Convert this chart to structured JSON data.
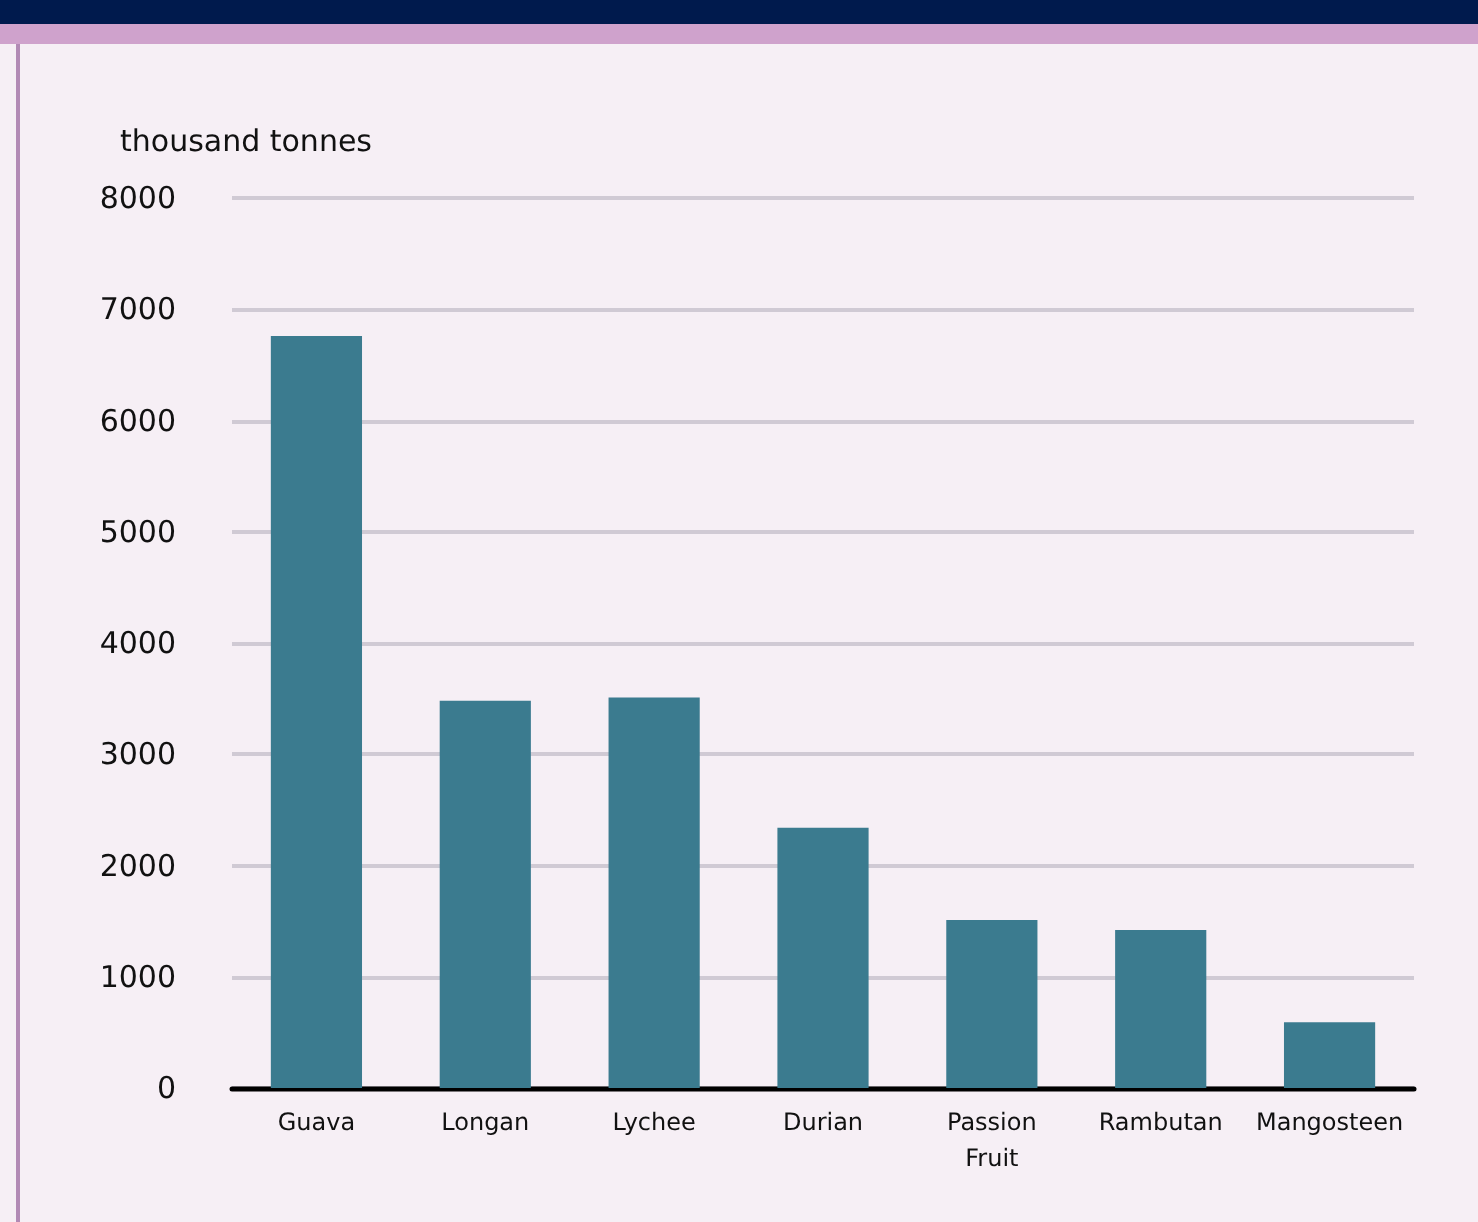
{
  "chart_data": {
    "type": "bar",
    "ylabel": "thousand tonnes",
    "categories": [
      "Guava",
      "Longan",
      "Lychee",
      "Durian",
      "Passion\nFruit",
      "Rambutan",
      "Mangosteen"
    ],
    "values": [
      6760,
      3480,
      3510,
      2340,
      1510,
      1420,
      590
    ],
    "color": "#3b7b8f",
    "ylim": [
      0,
      8000
    ],
    "yticks": [
      0,
      1000,
      2000,
      3000,
      4000,
      5000,
      6000,
      7000,
      8000
    ],
    "grid": "y"
  }
}
